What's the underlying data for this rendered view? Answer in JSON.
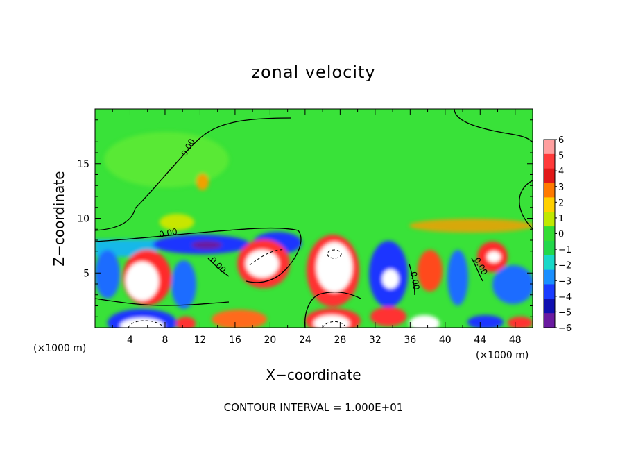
{
  "chart_data": {
    "type": "heatmap",
    "title": "zonal velocity",
    "xlabel": "X−coordinate",
    "ylabel": "Z−coordinate",
    "x_unit_left": "(×1000 m)",
    "x_unit_right": "(×1000 m)",
    "xlim": [
      0,
      50
    ],
    "ylim": [
      0,
      20
    ],
    "xticks": [
      4,
      8,
      12,
      16,
      20,
      24,
      28,
      32,
      36,
      40,
      44,
      48
    ],
    "yticks": [
      5,
      10,
      15
    ],
    "colorbar": {
      "levels": [
        6,
        5,
        4,
        3,
        2,
        1,
        0,
        -1,
        -2,
        -3,
        -4,
        -5,
        -6
      ],
      "level_labels": [
        "6",
        "5",
        "4",
        "3",
        "2",
        "1",
        "0",
        "−1",
        "−2",
        "−3",
        "−4",
        "−5",
        "−6"
      ],
      "colors": [
        "#ff9f9f",
        "#ff3a3a",
        "#e11818",
        "#ff7a00",
        "#ffd000",
        "#c0e800",
        "#33dd33",
        "#22d84a",
        "#18d8c8",
        "#1a8fff",
        "#1a3cff",
        "#1010b0",
        "#6a1aa0"
      ]
    },
    "contour_labels": [
      "0.00",
      "0.00",
      "0.00",
      "0.00",
      "0.00"
    ],
    "footer": "CONTOUR INTERVAL = 1.000E+01",
    "background_color": "#39e239"
  }
}
